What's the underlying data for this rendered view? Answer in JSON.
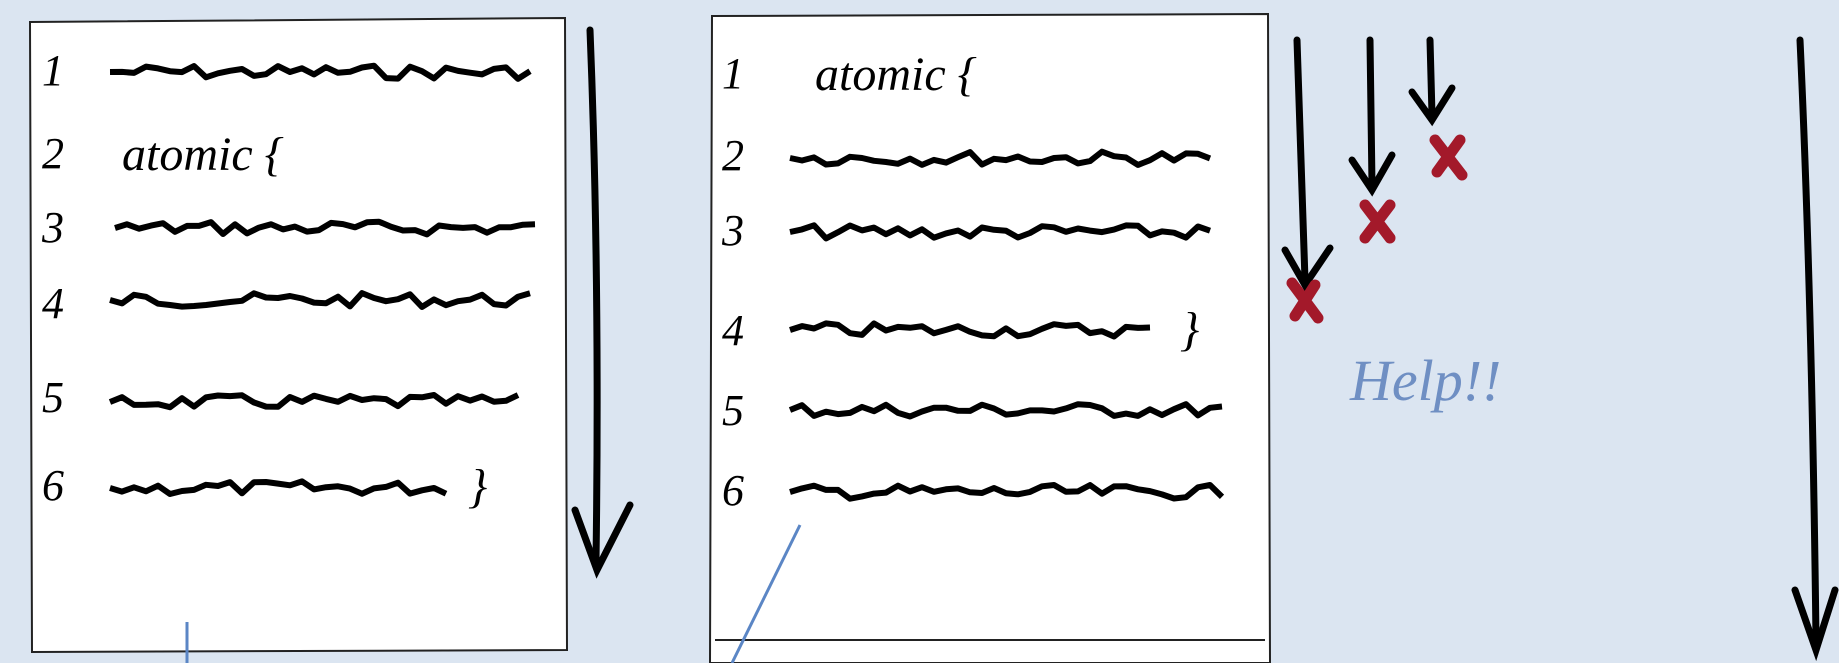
{
  "left_panel": {
    "line_numbers": [
      "1",
      "2",
      "3",
      "4",
      "5",
      "6"
    ],
    "atomic_open": "atomic {",
    "atomic_close": "}"
  },
  "right_panel": {
    "line_numbers": [
      "1",
      "2",
      "3",
      "4",
      "5",
      "6"
    ],
    "atomic_open": "atomic {",
    "atomic_close": "}",
    "annotation": "Help!!"
  }
}
